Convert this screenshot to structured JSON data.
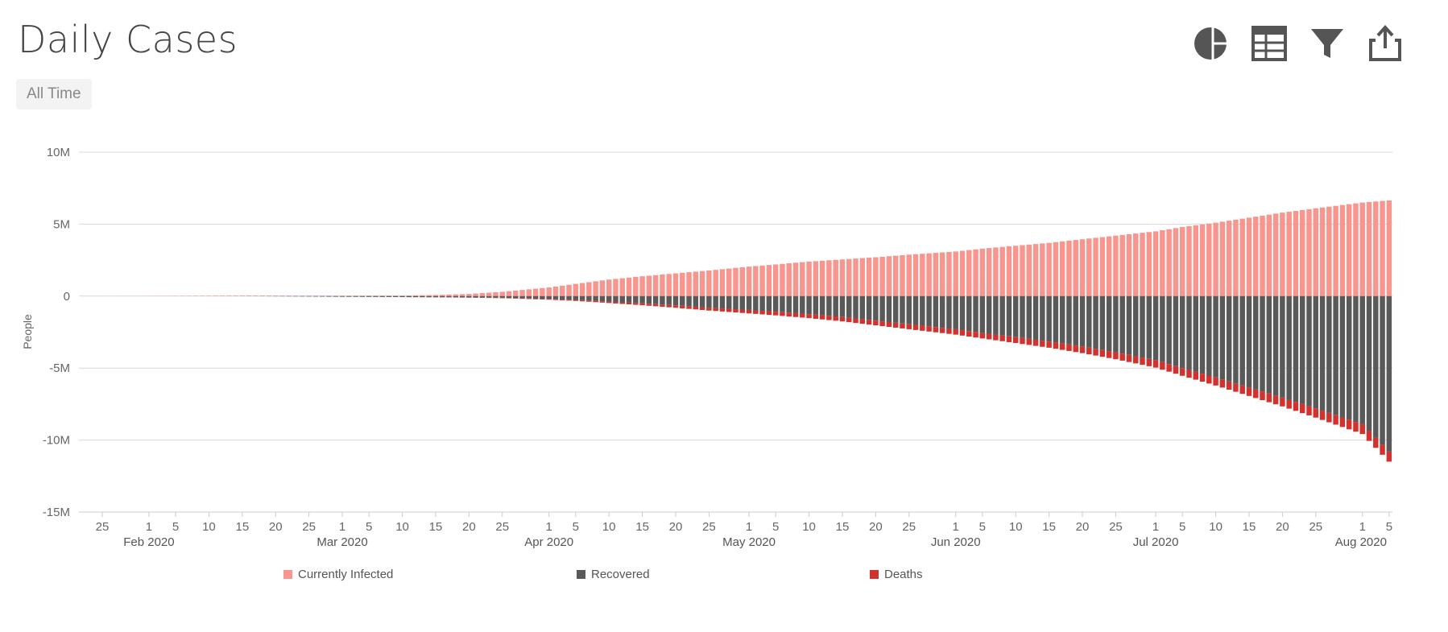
{
  "header": {
    "title": "Daily Cases",
    "range_label": "All Time"
  },
  "toolbar": [
    {
      "icon": "pie-chart-icon",
      "name": "chart-type-button"
    },
    {
      "icon": "table-icon",
      "name": "table-view-button"
    },
    {
      "icon": "filter-icon",
      "name": "filter-button"
    },
    {
      "icon": "share-icon",
      "name": "export-button"
    }
  ],
  "colors": {
    "Currently Infected": "#f7968f",
    "Recovered": "#595959",
    "Deaths": "#d2322d",
    "grid": "#d8d8d8",
    "axis": "#cccccc"
  },
  "chart_data": {
    "type": "bar",
    "stacking": "diverging",
    "title": "Daily Cases",
    "ylabel": "People",
    "ylim": [
      -15000000,
      10000000
    ],
    "yticks": [
      10000000,
      5000000,
      0,
      -5000000,
      -10000000,
      -15000000
    ],
    "ytick_labels": [
      "10M",
      "5M",
      "0",
      "-5M",
      "-10M",
      "-15M"
    ],
    "xlim": [
      "2020-01-22",
      "2020-08-05"
    ],
    "xticks": [
      {
        "date": "2020-01-25",
        "label": "25"
      },
      {
        "date": "2020-02-01",
        "label": "1"
      },
      {
        "date": "2020-02-05",
        "label": "5"
      },
      {
        "date": "2020-02-10",
        "label": "10"
      },
      {
        "date": "2020-02-15",
        "label": "15"
      },
      {
        "date": "2020-02-20",
        "label": "20"
      },
      {
        "date": "2020-02-25",
        "label": "25"
      },
      {
        "date": "2020-03-01",
        "label": "1"
      },
      {
        "date": "2020-03-05",
        "label": "5"
      },
      {
        "date": "2020-03-10",
        "label": "10"
      },
      {
        "date": "2020-03-15",
        "label": "15"
      },
      {
        "date": "2020-03-20",
        "label": "20"
      },
      {
        "date": "2020-03-25",
        "label": "25"
      },
      {
        "date": "2020-04-01",
        "label": "1"
      },
      {
        "date": "2020-04-05",
        "label": "5"
      },
      {
        "date": "2020-04-10",
        "label": "10"
      },
      {
        "date": "2020-04-15",
        "label": "15"
      },
      {
        "date": "2020-04-20",
        "label": "20"
      },
      {
        "date": "2020-04-25",
        "label": "25"
      },
      {
        "date": "2020-05-01",
        "label": "1"
      },
      {
        "date": "2020-05-05",
        "label": "5"
      },
      {
        "date": "2020-05-10",
        "label": "10"
      },
      {
        "date": "2020-05-15",
        "label": "15"
      },
      {
        "date": "2020-05-20",
        "label": "20"
      },
      {
        "date": "2020-05-25",
        "label": "25"
      },
      {
        "date": "2020-06-01",
        "label": "1"
      },
      {
        "date": "2020-06-05",
        "label": "5"
      },
      {
        "date": "2020-06-10",
        "label": "10"
      },
      {
        "date": "2020-06-15",
        "label": "15"
      },
      {
        "date": "2020-06-20",
        "label": "20"
      },
      {
        "date": "2020-06-25",
        "label": "25"
      },
      {
        "date": "2020-07-01",
        "label": "1"
      },
      {
        "date": "2020-07-05",
        "label": "5"
      },
      {
        "date": "2020-07-10",
        "label": "10"
      },
      {
        "date": "2020-07-15",
        "label": "15"
      },
      {
        "date": "2020-07-20",
        "label": "20"
      },
      {
        "date": "2020-07-25",
        "label": "25"
      },
      {
        "date": "2020-08-01",
        "label": "1"
      },
      {
        "date": "2020-08-05",
        "label": "5"
      }
    ],
    "month_labels": [
      {
        "date": "2020-02-01",
        "label": "Feb 2020"
      },
      {
        "date": "2020-03-01",
        "label": "Mar 2020"
      },
      {
        "date": "2020-04-01",
        "label": "Apr 2020"
      },
      {
        "date": "2020-05-01",
        "label": "May 2020"
      },
      {
        "date": "2020-06-01",
        "label": "Jun 2020"
      },
      {
        "date": "2020-07-01",
        "label": "Jul 2020"
      },
      {
        "date": "2020-08-01",
        "label": "Aug 2020"
      }
    ],
    "series": [
      {
        "name": "Currently Infected",
        "points": [
          [
            "2020-01-22",
            0
          ],
          [
            "2020-02-01",
            10000
          ],
          [
            "2020-02-10",
            30000
          ],
          [
            "2020-02-20",
            30000
          ],
          [
            "2020-03-01",
            30000
          ],
          [
            "2020-03-10",
            40000
          ],
          [
            "2020-03-15",
            80000
          ],
          [
            "2020-03-20",
            150000
          ],
          [
            "2020-03-25",
            300000
          ],
          [
            "2020-04-01",
            600000
          ],
          [
            "2020-04-05",
            850000
          ],
          [
            "2020-04-10",
            1150000
          ],
          [
            "2020-04-15",
            1380000
          ],
          [
            "2020-04-20",
            1580000
          ],
          [
            "2020-04-25",
            1780000
          ],
          [
            "2020-05-01",
            2050000
          ],
          [
            "2020-05-05",
            2200000
          ],
          [
            "2020-05-10",
            2400000
          ],
          [
            "2020-05-15",
            2550000
          ],
          [
            "2020-05-20",
            2700000
          ],
          [
            "2020-05-25",
            2880000
          ],
          [
            "2020-06-01",
            3100000
          ],
          [
            "2020-06-05",
            3300000
          ],
          [
            "2020-06-10",
            3500000
          ],
          [
            "2020-06-15",
            3700000
          ],
          [
            "2020-06-20",
            3950000
          ],
          [
            "2020-06-25",
            4200000
          ],
          [
            "2020-07-01",
            4500000
          ],
          [
            "2020-07-05",
            4800000
          ],
          [
            "2020-07-10",
            5100000
          ],
          [
            "2020-07-15",
            5450000
          ],
          [
            "2020-07-20",
            5800000
          ],
          [
            "2020-07-25",
            6100000
          ],
          [
            "2020-08-01",
            6500000
          ],
          [
            "2020-08-05",
            6650000
          ]
        ]
      },
      {
        "name": "Recovered",
        "points": [
          [
            "2020-01-22",
            0
          ],
          [
            "2020-02-10",
            0
          ],
          [
            "2020-02-20",
            -15000
          ],
          [
            "2020-03-01",
            -45000
          ],
          [
            "2020-03-10",
            -65000
          ],
          [
            "2020-03-15",
            -80000
          ],
          [
            "2020-03-20",
            -95000
          ],
          [
            "2020-03-25",
            -120000
          ],
          [
            "2020-04-01",
            -200000
          ],
          [
            "2020-04-05",
            -260000
          ],
          [
            "2020-04-10",
            -380000
          ],
          [
            "2020-04-15",
            -500000
          ],
          [
            "2020-04-20",
            -640000
          ],
          [
            "2020-04-25",
            -800000
          ],
          [
            "2020-05-01",
            -960000
          ],
          [
            "2020-05-05",
            -1080000
          ],
          [
            "2020-05-10",
            -1250000
          ],
          [
            "2020-05-15",
            -1450000
          ],
          [
            "2020-05-20",
            -1700000
          ],
          [
            "2020-05-25",
            -1950000
          ],
          [
            "2020-06-01",
            -2300000
          ],
          [
            "2020-06-05",
            -2550000
          ],
          [
            "2020-06-10",
            -2850000
          ],
          [
            "2020-06-15",
            -3150000
          ],
          [
            "2020-06-20",
            -3500000
          ],
          [
            "2020-06-25",
            -3900000
          ],
          [
            "2020-07-01",
            -4450000
          ],
          [
            "2020-07-05",
            -5000000
          ],
          [
            "2020-07-10",
            -5650000
          ],
          [
            "2020-07-15",
            -6350000
          ],
          [
            "2020-07-20",
            -7050000
          ],
          [
            "2020-07-25",
            -7800000
          ],
          [
            "2020-08-01",
            -8900000
          ],
          [
            "2020-08-05",
            -10800000
          ]
        ]
      },
      {
        "name": "Deaths",
        "points": [
          [
            "2020-01-22",
            0
          ],
          [
            "2020-02-10",
            0
          ],
          [
            "2020-03-01",
            -3000
          ],
          [
            "2020-03-10",
            -4000
          ],
          [
            "2020-03-20",
            -12000
          ],
          [
            "2020-03-25",
            -25000
          ],
          [
            "2020-04-01",
            -50000
          ],
          [
            "2020-04-10",
            -100000
          ],
          [
            "2020-04-20",
            -170000
          ],
          [
            "2020-05-01",
            -240000
          ],
          [
            "2020-05-10",
            -280000
          ],
          [
            "2020-05-20",
            -330000
          ],
          [
            "2020-06-01",
            -375000
          ],
          [
            "2020-06-10",
            -410000
          ],
          [
            "2020-06-20",
            -460000
          ],
          [
            "2020-07-01",
            -515000
          ],
          [
            "2020-07-10",
            -560000
          ],
          [
            "2020-07-20",
            -610000
          ],
          [
            "2020-08-01",
            -680000
          ],
          [
            "2020-08-05",
            -700000
          ]
        ]
      }
    ],
    "legend": [
      "Currently Infected",
      "Recovered",
      "Deaths"
    ],
    "legend_position": "bottom",
    "grid": true
  }
}
